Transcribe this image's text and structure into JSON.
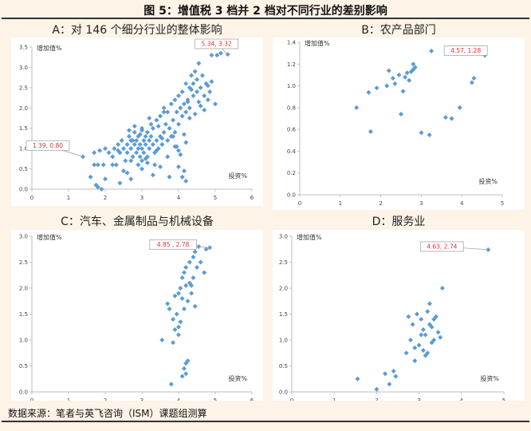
{
  "figure": {
    "title": "图 5：增值税 3 档并 2 档对不同行业的差别影响",
    "source": "数据来源：笔者与英飞咨询（ISM）课题组测算"
  },
  "chart_data": [
    {
      "type": "scatter",
      "title": "A：对 146 个细分行业的整体影响",
      "ylabel": "增加值%",
      "xlabel": "投资%",
      "xlim": [
        0,
        6
      ],
      "ylim": [
        0,
        3.5
      ],
      "xticks": [
        "0",
        "1",
        "2",
        "3",
        "4",
        "5",
        "6"
      ],
      "yticks": [
        "0.0",
        "0.5",
        "1.0",
        "1.5",
        "2.0",
        "2.5",
        "3.0",
        "3.5"
      ],
      "annotations": [
        {
          "text": "5.34, 3.32",
          "x": 5.34,
          "y": 3.32
        },
        {
          "text": "1.39, 0.80",
          "x": 1.39,
          "y": 0.8
        }
      ],
      "x": [
        1.39,
        1.6,
        1.7,
        1.7,
        1.8,
        1.85,
        1.95,
        2.0,
        2.1,
        2.2,
        2.25,
        2.3,
        2.35,
        2.4,
        2.45,
        2.5,
        2.55,
        2.6,
        2.6,
        2.65,
        2.7,
        2.7,
        2.75,
        2.8,
        2.8,
        2.85,
        2.85,
        2.9,
        2.9,
        2.95,
        2.95,
        3.0,
        3.0,
        3.0,
        3.05,
        3.05,
        3.1,
        3.1,
        3.15,
        3.15,
        3.2,
        3.2,
        3.25,
        3.25,
        3.3,
        3.3,
        3.35,
        3.4,
        3.4,
        3.45,
        3.5,
        3.5,
        3.55,
        3.6,
        3.6,
        3.65,
        3.7,
        3.7,
        3.75,
        3.8,
        3.8,
        3.85,
        3.9,
        3.9,
        3.95,
        4.0,
        4.0,
        4.05,
        4.1,
        4.1,
        4.15,
        4.2,
        4.2,
        4.25,
        4.3,
        4.3,
        4.35,
        4.4,
        4.4,
        4.45,
        4.5,
        4.5,
        4.55,
        4.6,
        4.65,
        4.7,
        4.75,
        4.8,
        4.85,
        4.9,
        5.0,
        5.05,
        5.15,
        5.34,
        1.8,
        2.0,
        2.4,
        2.6,
        2.7,
        2.9,
        3.0,
        3.1,
        3.3,
        3.5,
        3.7,
        4.1,
        4.15,
        4.2,
        4.0,
        2.8,
        3.2,
        3.6,
        4.45,
        4.6,
        4.2,
        3.9,
        2.5,
        2.2,
        1.9,
        3.4,
        3.0,
        2.7,
        4.3,
        4.7,
        3.85,
        4.05,
        3.15,
        2.95,
        3.35,
        3.75,
        4.25,
        2.75,
        2.35,
        1.75,
        4.9,
        4.55,
        4.35,
        4.8,
        3.55,
        2.65,
        3.45,
        4.15,
        3.95,
        4.0
      ],
      "y": [
        0.8,
        0.3,
        0.6,
        0.9,
        0.6,
        0.95,
        0.6,
        1.0,
        0.9,
        0.8,
        1.0,
        0.6,
        1.1,
        0.9,
        1.2,
        1.0,
        0.7,
        1.1,
        0.9,
        1.3,
        1.0,
        1.2,
        0.8,
        1.4,
        1.1,
        0.9,
        1.2,
        1.3,
        1.0,
        0.8,
        1.1,
        1.0,
        1.5,
        0.7,
        1.2,
        0.9,
        1.3,
        1.1,
        1.4,
        0.8,
        1.0,
        1.2,
        1.6,
        1.3,
        1.1,
        1.5,
        0.9,
        1.2,
        1.7,
        1.0,
        1.3,
        1.8,
        1.1,
        1.4,
        2.0,
        1.6,
        1.2,
        1.9,
        1.5,
        1.3,
        2.1,
        1.7,
        1.4,
        2.2,
        1.9,
        1.6,
        2.3,
        2.0,
        1.8,
        2.4,
        2.1,
        1.9,
        2.6,
        2.2,
        2.0,
        2.5,
        2.8,
        2.3,
        2.6,
        2.9,
        2.4,
        2.7,
        3.1,
        2.5,
        2.8,
        2.3,
        2.6,
        2.2,
        2.4,
        3.3,
        2.1,
        3.3,
        3.35,
        3.32,
        0.05,
        0.25,
        0.15,
        0.4,
        0.25,
        0.6,
        0.5,
        0.75,
        0.35,
        0.55,
        0.8,
        0.3,
        0.45,
        0.2,
        0.55,
        1.55,
        1.75,
        1.9,
        1.85,
        2.05,
        1.15,
        1.05,
        0.45,
        0.6,
        0.0,
        0.95,
        1.45,
        0.7,
        1.75,
        1.95,
        1.3,
        0.85,
        0.65,
        1.35,
        0.6,
        0.3,
        2.15,
        1.2,
        0.95,
        0.1,
        2.65,
        2.15,
        2.45,
        2.55,
        1.25,
        1.45,
        1.55,
        1.35,
        1.05,
        0.95
      ]
    },
    {
      "type": "scatter",
      "title": "B：农产品部门",
      "ylabel": "增加值%",
      "xlabel": "投资%",
      "xlim": [
        0,
        5
      ],
      "ylim": [
        0,
        1.4
      ],
      "xticks": [
        "0",
        "1",
        "2",
        "3",
        "4",
        "5"
      ],
      "yticks": [
        "0.0",
        "0.2",
        "0.4",
        "0.6",
        "0.8",
        "1.0",
        "1.2",
        "1.4"
      ],
      "annotations": [
        {
          "text": "4.57, 1.28",
          "x": 4.57,
          "y": 1.28
        }
      ],
      "x": [
        1.4,
        1.7,
        1.75,
        1.9,
        2.15,
        2.2,
        2.3,
        2.35,
        2.45,
        2.5,
        2.55,
        2.6,
        2.65,
        2.7,
        2.75,
        2.8,
        2.8,
        2.85,
        3.0,
        3.2,
        3.25,
        3.6,
        3.75,
        3.95,
        4.25,
        4.3,
        4.57
      ],
      "y": [
        0.8,
        0.94,
        0.58,
        0.98,
        1.0,
        1.14,
        1.07,
        1.02,
        1.1,
        0.74,
        0.95,
        1.08,
        1.12,
        1.05,
        1.13,
        1.2,
        1.15,
        1.17,
        0.57,
        0.55,
        1.32,
        0.71,
        0.7,
        0.8,
        1.03,
        1.07,
        1.28
      ]
    },
    {
      "type": "scatter",
      "title": "C：汽车、金属制品与机械设备",
      "ylabel": "增加值%",
      "xlabel": "投资%",
      "xlim": [
        0,
        6
      ],
      "ylim": [
        0,
        3.0
      ],
      "xticks": [
        "0",
        "1",
        "2",
        "3",
        "4",
        "5",
        "6"
      ],
      "yticks": [
        "0.0",
        "0.5",
        "1.0",
        "1.5",
        "2.0",
        "2.5",
        "3.0"
      ],
      "annotations": [
        {
          "text": "4.85 , 2.78",
          "x": 4.85,
          "y": 2.78
        }
      ],
      "x": [
        3.55,
        3.7,
        3.75,
        3.8,
        3.85,
        3.9,
        3.9,
        3.95,
        4.0,
        4.0,
        4.05,
        4.05,
        4.1,
        4.1,
        4.15,
        4.15,
        4.2,
        4.2,
        4.25,
        4.3,
        4.3,
        4.35,
        4.4,
        4.4,
        4.45,
        4.5,
        4.55,
        4.6,
        4.7,
        4.75,
        4.85,
        3.85,
        4.1,
        4.15,
        4.2,
        4.2,
        4.25,
        4.0,
        4.35,
        4.45
      ],
      "y": [
        1.0,
        1.7,
        1.6,
        0.15,
        1.4,
        1.85,
        1.2,
        1.5,
        1.9,
        1.1,
        2.0,
        1.35,
        2.2,
        1.8,
        2.3,
        1.6,
        2.05,
        2.4,
        1.75,
        2.5,
        2.1,
        1.9,
        2.6,
        2.2,
        2.7,
        2.4,
        2.8,
        2.5,
        2.3,
        2.75,
        2.78,
        0.95,
        0.3,
        0.45,
        0.55,
        0.35,
        0.6,
        1.25,
        2.05,
        1.65
      ]
    },
    {
      "type": "scatter",
      "title": "D：服务业",
      "ylabel": "增加值%",
      "xlabel": "投资%",
      "xlim": [
        0,
        5
      ],
      "ylim": [
        0,
        3.0
      ],
      "xticks": [
        "0",
        "1",
        "2",
        "3",
        "4",
        "5"
      ],
      "yticks": [
        "0.0",
        "0.5",
        "1.0",
        "1.5",
        "2.0",
        "2.5",
        "3.0"
      ],
      "annotations": [
        {
          "text": "4.63, 2.74",
          "x": 4.63,
          "y": 2.74
        }
      ],
      "x": [
        1.55,
        2.0,
        2.2,
        2.3,
        2.4,
        2.45,
        2.7,
        2.75,
        2.8,
        2.85,
        2.9,
        2.95,
        3.0,
        3.05,
        3.1,
        3.1,
        3.15,
        3.2,
        3.2,
        3.25,
        3.3,
        3.3,
        3.35,
        3.4,
        3.45,
        3.5,
        3.55,
        3.25,
        3.05,
        2.9,
        3.15,
        3.35,
        4.63
      ],
      "y": [
        0.25,
        0.05,
        0.35,
        0.15,
        0.4,
        0.3,
        0.75,
        1.45,
        1.0,
        1.3,
        0.6,
        1.5,
        0.9,
        1.4,
        1.2,
        0.8,
        1.1,
        1.55,
        0.75,
        1.7,
        1.25,
        0.95,
        1.0,
        1.45,
        1.15,
        1.05,
        2.0,
        1.3,
        1.1,
        0.85,
        0.7,
        1.4,
        2.74
      ]
    }
  ]
}
